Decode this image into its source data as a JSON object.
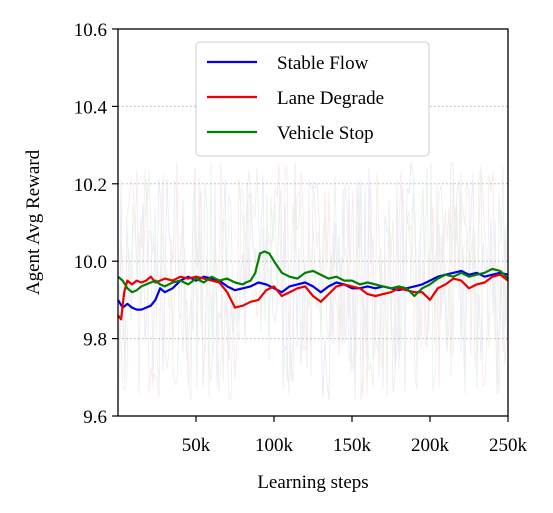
{
  "chart_data": {
    "type": "line",
    "title": "",
    "xlabel": "Learning steps",
    "ylabel": "Agent Avg Reward",
    "xlim": [
      0,
      250000
    ],
    "ylim": [
      9.6,
      10.6
    ],
    "x_ticks": [
      50000,
      100000,
      150000,
      200000,
      250000
    ],
    "x_tick_labels": [
      "50k",
      "100k",
      "150k",
      "200k",
      "250k"
    ],
    "y_ticks": [
      9.6,
      9.8,
      10.0,
      10.2,
      10.4,
      10.6
    ],
    "y_tick_labels": [
      "9.6",
      "9.8",
      "10.0",
      "10.2",
      "10.4",
      "10.6"
    ],
    "grid": "horizontal dotted",
    "legend_position": "top-center",
    "series": [
      {
        "name": "Stable Flow",
        "color": "#0000ee",
        "x": [
          0,
          3000,
          6000,
          9000,
          12000,
          15000,
          18000,
          21000,
          24000,
          27000,
          30000,
          35000,
          40000,
          45000,
          50000,
          55000,
          60000,
          65000,
          70000,
          75000,
          80000,
          85000,
          90000,
          95000,
          100000,
          105000,
          110000,
          115000,
          120000,
          125000,
          130000,
          135000,
          140000,
          145000,
          150000,
          155000,
          160000,
          165000,
          170000,
          175000,
          180000,
          185000,
          190000,
          195000,
          200000,
          205000,
          210000,
          215000,
          220000,
          225000,
          230000,
          235000,
          240000,
          245000,
          250000
        ],
        "y": [
          9.9,
          9.88,
          9.89,
          9.88,
          9.875,
          9.875,
          9.88,
          9.885,
          9.9,
          9.93,
          9.92,
          9.93,
          9.95,
          9.96,
          9.95,
          9.96,
          9.955,
          9.95,
          9.935,
          9.925,
          9.93,
          9.935,
          9.945,
          9.94,
          9.93,
          9.92,
          9.935,
          9.94,
          9.945,
          9.935,
          9.92,
          9.935,
          9.945,
          9.94,
          9.93,
          9.93,
          9.935,
          9.93,
          9.935,
          9.93,
          9.925,
          9.93,
          9.935,
          9.94,
          9.95,
          9.96,
          9.965,
          9.97,
          9.975,
          9.965,
          9.97,
          9.96,
          9.965,
          9.97,
          9.965
        ]
      },
      {
        "name": "Lane Degrade",
        "color": "#ee0000",
        "x": [
          0,
          2000,
          4000,
          6000,
          9000,
          12000,
          15000,
          18000,
          21000,
          24000,
          27000,
          30000,
          35000,
          40000,
          45000,
          50000,
          55000,
          60000,
          65000,
          70000,
          75000,
          80000,
          85000,
          90000,
          95000,
          100000,
          105000,
          110000,
          115000,
          120000,
          125000,
          130000,
          135000,
          140000,
          145000,
          150000,
          155000,
          160000,
          165000,
          170000,
          175000,
          180000,
          185000,
          190000,
          195000,
          200000,
          205000,
          210000,
          215000,
          220000,
          225000,
          230000,
          235000,
          240000,
          245000,
          250000
        ],
        "y": [
          9.86,
          9.85,
          9.92,
          9.95,
          9.94,
          9.95,
          9.945,
          9.95,
          9.96,
          9.945,
          9.95,
          9.955,
          9.95,
          9.96,
          9.955,
          9.96,
          9.955,
          9.95,
          9.945,
          9.92,
          9.88,
          9.885,
          9.895,
          9.9,
          9.925,
          9.935,
          9.91,
          9.92,
          9.93,
          9.935,
          9.91,
          9.895,
          9.915,
          9.935,
          9.94,
          9.935,
          9.93,
          9.915,
          9.91,
          9.915,
          9.92,
          9.93,
          9.925,
          9.92,
          9.92,
          9.9,
          9.93,
          9.94,
          9.955,
          9.95,
          9.93,
          9.94,
          9.945,
          9.96,
          9.965,
          9.95
        ]
      },
      {
        "name": "Vehicle Stop",
        "color": "#008000",
        "x": [
          0,
          3000,
          6000,
          9000,
          12000,
          15000,
          18000,
          21000,
          24000,
          27000,
          30000,
          35000,
          40000,
          45000,
          50000,
          55000,
          60000,
          65000,
          70000,
          75000,
          80000,
          82000,
          85000,
          88000,
          91000,
          94000,
          97000,
          100000,
          105000,
          110000,
          115000,
          120000,
          125000,
          130000,
          135000,
          140000,
          145000,
          150000,
          155000,
          160000,
          165000,
          170000,
          175000,
          180000,
          185000,
          190000,
          195000,
          200000,
          205000,
          210000,
          215000,
          220000,
          225000,
          230000,
          235000,
          240000,
          245000,
          250000
        ],
        "y": [
          9.96,
          9.95,
          9.93,
          9.92,
          9.925,
          9.935,
          9.94,
          9.945,
          9.95,
          9.94,
          9.935,
          9.945,
          9.95,
          9.94,
          9.955,
          9.945,
          9.96,
          9.95,
          9.955,
          9.945,
          9.94,
          9.945,
          9.95,
          9.97,
          10.02,
          10.025,
          10.02,
          10.0,
          9.97,
          9.96,
          9.955,
          9.97,
          9.975,
          9.965,
          9.955,
          9.96,
          9.95,
          9.95,
          9.94,
          9.945,
          9.94,
          9.935,
          9.93,
          9.935,
          9.93,
          9.91,
          9.93,
          9.94,
          9.955,
          9.965,
          9.96,
          9.97,
          9.96,
          9.965,
          9.97,
          9.98,
          9.975,
          9.955
        ]
      }
    ]
  }
}
